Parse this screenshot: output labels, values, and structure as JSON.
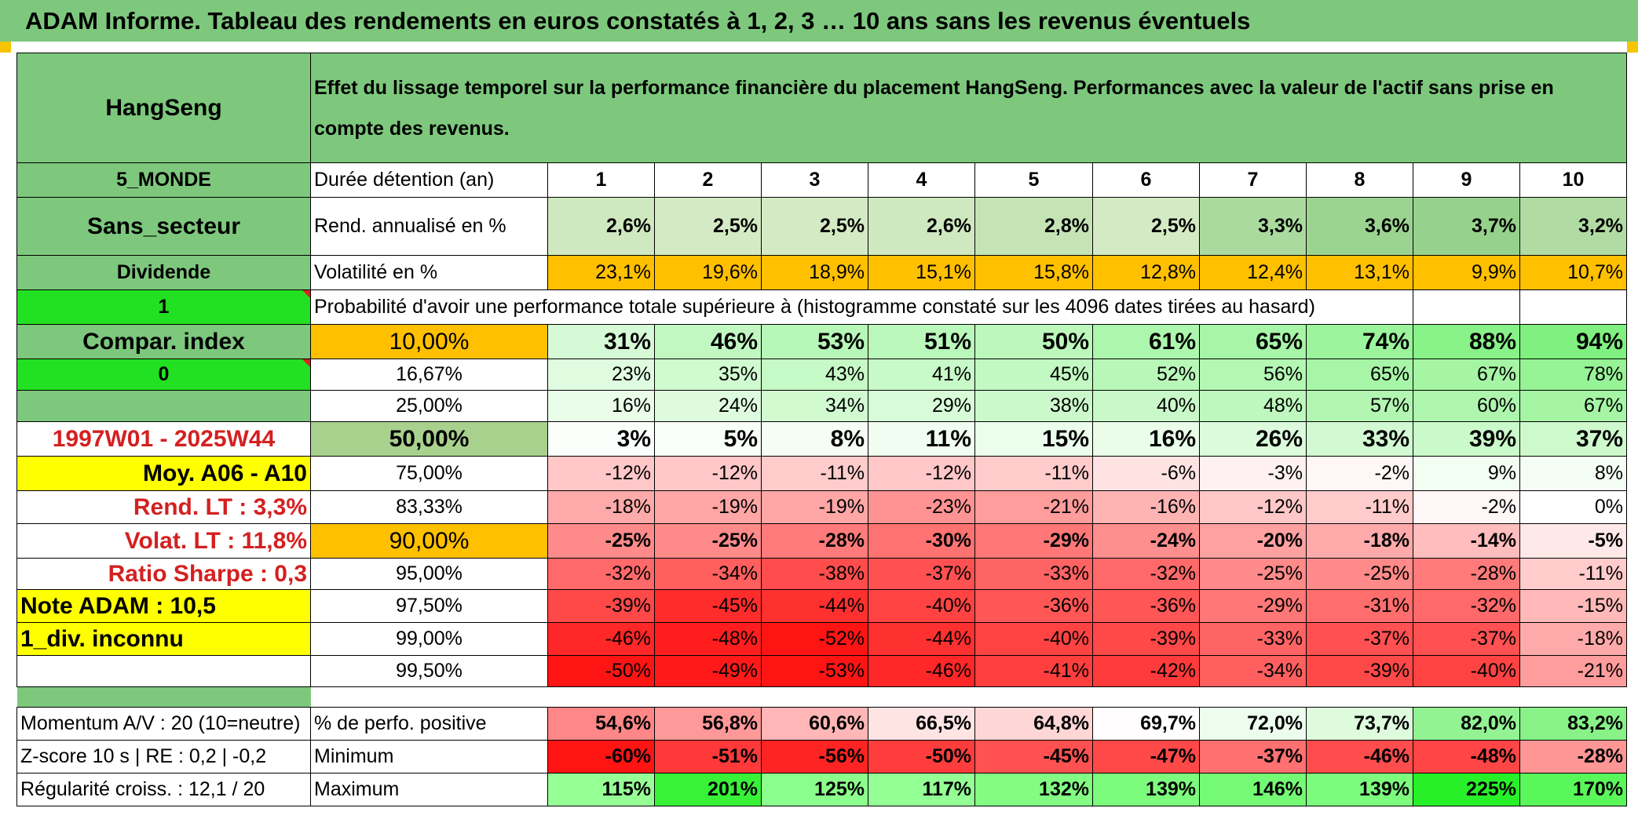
{
  "banner": "ADAM Informe. Tableau des rendements en euros constatés à 1, 2, 3 … 10 ans sans les revenus éventuels",
  "header": {
    "asset": "HangSeng",
    "title": "Effet du lissage temporel sur la performance financière du placement HangSeng. Performances avec la valeur de l'actif sans prise en compte des revenus."
  },
  "left": {
    "region": "5_MONDE",
    "sector": "Sans_secteur",
    "dividend": "Dividende",
    "one": "1",
    "compar": "Compar. index",
    "zero": "0",
    "period": "1997W01 - 2025W44",
    "moy": "Moy. A06 - A10",
    "rend_lt": "Rend. LT :   3,3%",
    "volat_lt": "Volat. LT :   11,8%",
    "sharpe": "Ratio Sharpe :   0,3",
    "note": "Note ADAM : 10,5",
    "div": "1_div. inconnu",
    "momentum": "Momentum A/V : 20 (10=neutre)",
    "zscore": "Z-score 10 s | RE : 0,2 | -0,2",
    "regul": "Régularité croiss. : 12,1 / 20"
  },
  "labels": {
    "duree": "Durée détention (an)",
    "rend": "Rend. annualisé en %",
    "volat": "Volatilité en %",
    "proba": "Probabilité d'avoir une performance totale supérieure à (histogramme constaté sur les 4096 dates tirées au hasard)",
    "positive": "% de perfo. positive",
    "minimum": "Minimum",
    "maximum": "Maximum"
  },
  "years": [
    "1",
    "2",
    "3",
    "4",
    "5",
    "6",
    "7",
    "8",
    "9",
    "10"
  ],
  "rend": [
    "2,6%",
    "2,5%",
    "2,5%",
    "2,6%",
    "2,8%",
    "2,5%",
    "3,3%",
    "3,6%",
    "3,7%",
    "3,2%"
  ],
  "volat": [
    "23,1%",
    "19,6%",
    "18,9%",
    "15,1%",
    "15,8%",
    "12,8%",
    "12,4%",
    "13,1%",
    "9,9%",
    "10,7%"
  ],
  "prob_rows": [
    {
      "level": "10,00%",
      "values": [
        "31%",
        "46%",
        "53%",
        "51%",
        "50%",
        "61%",
        "65%",
        "74%",
        "88%",
        "94%"
      ]
    },
    {
      "level": "16,67%",
      "values": [
        "23%",
        "35%",
        "43%",
        "41%",
        "45%",
        "52%",
        "56%",
        "65%",
        "67%",
        "78%"
      ]
    },
    {
      "level": "25,00%",
      "values": [
        "16%",
        "24%",
        "34%",
        "29%",
        "38%",
        "40%",
        "48%",
        "57%",
        "60%",
        "67%"
      ]
    },
    {
      "level": "50,00%",
      "values": [
        "3%",
        "5%",
        "8%",
        "11%",
        "15%",
        "16%",
        "26%",
        "33%",
        "39%",
        "37%"
      ]
    },
    {
      "level": "75,00%",
      "values": [
        "-12%",
        "-12%",
        "-11%",
        "-12%",
        "-11%",
        "-6%",
        "-3%",
        "-2%",
        "9%",
        "8%"
      ]
    },
    {
      "level": "83,33%",
      "values": [
        "-18%",
        "-19%",
        "-19%",
        "-23%",
        "-21%",
        "-16%",
        "-12%",
        "-11%",
        "-2%",
        "0%"
      ]
    },
    {
      "level": "90,00%",
      "values": [
        "-25%",
        "-25%",
        "-28%",
        "-30%",
        "-29%",
        "-24%",
        "-20%",
        "-18%",
        "-14%",
        "-5%"
      ]
    },
    {
      "level": "95,00%",
      "values": [
        "-32%",
        "-34%",
        "-38%",
        "-37%",
        "-33%",
        "-32%",
        "-25%",
        "-25%",
        "-28%",
        "-11%"
      ]
    },
    {
      "level": "97,50%",
      "values": [
        "-39%",
        "-45%",
        "-44%",
        "-40%",
        "-36%",
        "-36%",
        "-29%",
        "-31%",
        "-32%",
        "-15%"
      ]
    },
    {
      "level": "99,00%",
      "values": [
        "-46%",
        "-48%",
        "-52%",
        "-44%",
        "-40%",
        "-39%",
        "-33%",
        "-37%",
        "-37%",
        "-18%"
      ]
    },
    {
      "level": "99,50%",
      "values": [
        "-50%",
        "-49%",
        "-53%",
        "-46%",
        "-41%",
        "-42%",
        "-34%",
        "-39%",
        "-40%",
        "-21%"
      ]
    }
  ],
  "positive": [
    "54,6%",
    "56,8%",
    "60,6%",
    "66,5%",
    "64,8%",
    "69,7%",
    "72,0%",
    "73,7%",
    "82,0%",
    "83,2%"
  ],
  "minimum": [
    "-60%",
    "-51%",
    "-56%",
    "-50%",
    "-45%",
    "-47%",
    "-37%",
    "-46%",
    "-48%",
    "-28%"
  ],
  "maximum": [
    "115%",
    "201%",
    "125%",
    "117%",
    "132%",
    "139%",
    "146%",
    "139%",
    "225%",
    "170%"
  ]
}
